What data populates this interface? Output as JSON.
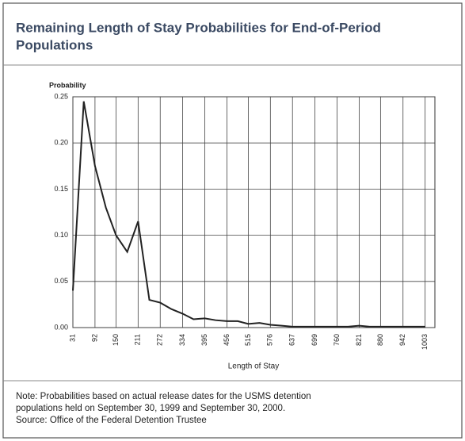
{
  "chart_data": {
    "type": "line",
    "title_lines": [
      "Remaining Length of Stay Probabilities for End-of-Period",
      "Populations"
    ],
    "ylabel": "Probability",
    "xlabel": "Length of Stay",
    "x": [
      31,
      61,
      92,
      122,
      150,
      181,
      211,
      242,
      272,
      303,
      334,
      364,
      395,
      425,
      456,
      486,
      515,
      546,
      576,
      607,
      637,
      668,
      699,
      729,
      760,
      790,
      821,
      850,
      880,
      911,
      942,
      972,
      1003
    ],
    "series": [
      {
        "name": "Probability",
        "color": "#222222",
        "values": [
          0.04,
          0.245,
          0.175,
          0.13,
          0.1,
          0.082,
          0.115,
          0.03,
          0.027,
          0.02,
          0.015,
          0.009,
          0.01,
          0.008,
          0.007,
          0.007,
          0.004,
          0.005,
          0.003,
          0.002,
          0.001,
          0.001,
          0.001,
          0.001,
          0.001,
          0.001,
          0.002,
          0.001,
          0.001,
          0.001,
          0.001,
          0.001,
          0.001
        ]
      }
    ],
    "xlim": [
      31,
      1030
    ],
    "xticks": [
      31,
      92,
      150,
      211,
      272,
      334,
      395,
      456,
      515,
      576,
      637,
      699,
      760,
      821,
      880,
      942,
      1003
    ],
    "ylim": [
      0,
      0.25
    ],
    "yticks": [
      {
        "value": 0,
        "label": "0.00"
      },
      {
        "value": 0.05,
        "label": "0.05"
      },
      {
        "value": 0.1,
        "label": "0.10"
      },
      {
        "value": 0.15,
        "label": "0.15"
      },
      {
        "value": 0.2,
        "label": "0.20"
      },
      {
        "value": 0.25,
        "label": "0.25"
      }
    ],
    "grid": true,
    "note_lines": [
      "Note: Probabilities based on actual release dates for the USMS detention",
      "populations held on September 30, 1999 and September 30, 2000.",
      "Source: Office of the Federal Detention Trustee"
    ]
  }
}
